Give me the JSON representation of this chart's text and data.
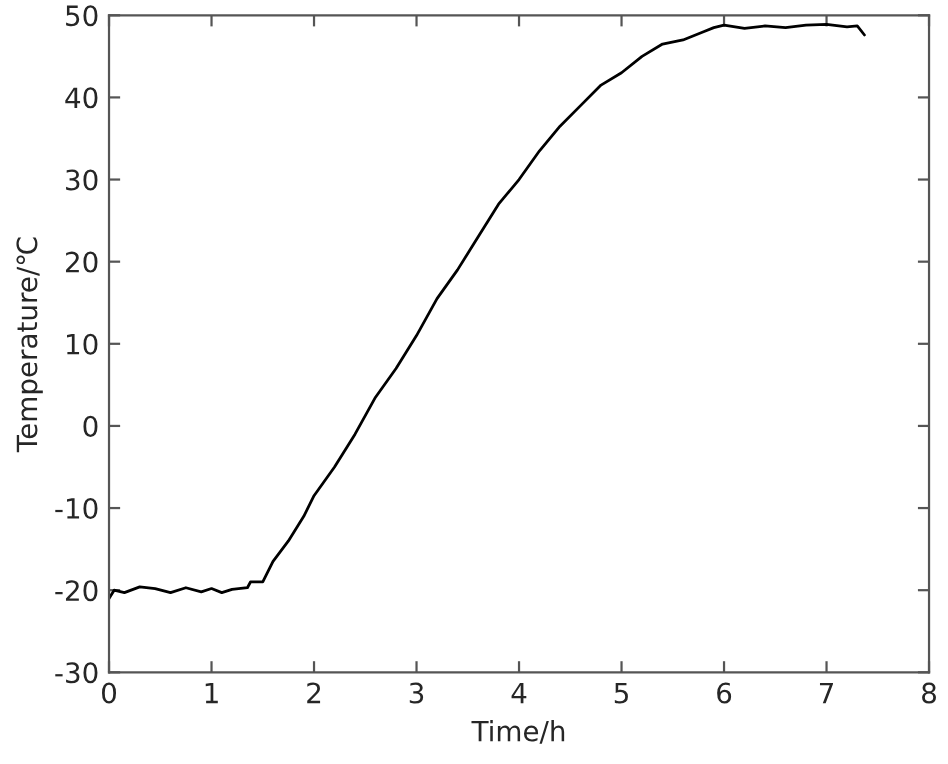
{
  "chart_data": {
    "type": "line",
    "xlabel": "Time/h",
    "ylabel": "Temperature/℃",
    "xlim": [
      0,
      8
    ],
    "xticks": [
      0,
      1,
      2,
      3,
      4,
      5,
      6,
      7,
      8
    ],
    "ylim": [
      -30,
      50
    ],
    "yticks": [
      -30,
      -20,
      -10,
      0,
      10,
      20,
      30,
      40,
      50
    ],
    "grid": false,
    "series": [
      {
        "color": "#000000",
        "x": [
          0,
          0.05,
          0.15,
          0.3,
          0.45,
          0.6,
          0.75,
          0.9,
          1.0,
          1.1,
          1.2,
          1.35,
          1.38,
          1.5,
          1.6,
          1.75,
          1.9,
          2.0,
          2.2,
          2.4,
          2.6,
          2.8,
          3.0,
          3.2,
          3.4,
          3.6,
          3.8,
          4.0,
          4.2,
          4.4,
          4.6,
          4.8,
          5.0,
          5.2,
          5.4,
          5.6,
          5.8,
          5.9,
          6.0,
          6.2,
          6.4,
          6.6,
          6.8,
          7.0,
          7.2,
          7.3,
          7.37
        ],
        "values": [
          -21,
          -20,
          -20.3,
          -19.6,
          -19.8,
          -20.3,
          -19.7,
          -20.2,
          -19.8,
          -20.3,
          -19.9,
          -19.7,
          -19,
          -19,
          -16.5,
          -14,
          -11,
          -8.5,
          -5,
          -1,
          3.5,
          7,
          11,
          15.5,
          19,
          23,
          27,
          30,
          33.5,
          36.5,
          39,
          41.5,
          43,
          45,
          46.5,
          47,
          48,
          48.5,
          48.8,
          48.4,
          48.7,
          48.5,
          48.8,
          48.9,
          48.6,
          48.7,
          47.6
        ]
      }
    ]
  }
}
